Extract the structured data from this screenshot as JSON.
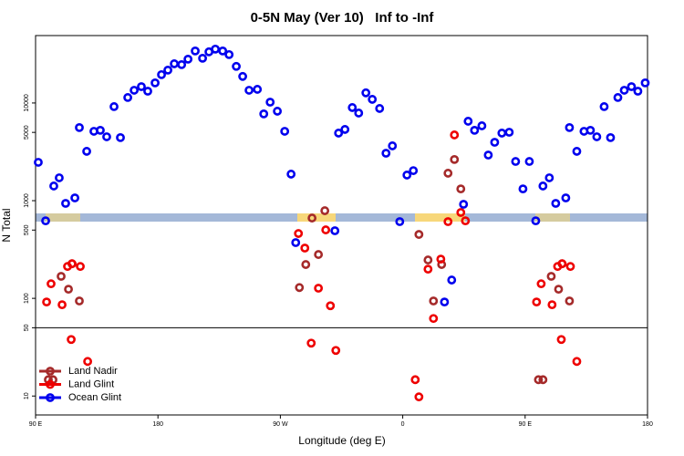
{
  "chart_data": {
    "type": "scatter",
    "title": "0-5N May (Ver 10)   Inf to -Inf",
    "xlabel": "Longitude (deg E)",
    "ylabel": "N Total",
    "xlim": [
      90,
      540
    ],
    "xticks": [
      {
        "value": 90,
        "label": "90 E"
      },
      {
        "value": 180,
        "label": "180"
      },
      {
        "value": 270,
        "label": "90 W"
      },
      {
        "value": 360,
        "label": "0"
      },
      {
        "value": 450,
        "label": "90 E"
      },
      {
        "value": 540,
        "label": "180"
      }
    ],
    "ylim": [
      6.4,
      49000
    ],
    "yticks": [
      10,
      50,
      100,
      500,
      1000,
      5000,
      10000
    ],
    "log_y": true,
    "hline": 50,
    "legend": "bottom-left",
    "series": [
      {
        "name": "Land Nadir",
        "color": "#a52a2a",
        "x": [
          99.4,
          102.8,
          108.8,
          114.2,
          116.8,
          122.2,
          284.0,
          288.7,
          293.3,
          298.0,
          302.7,
          371.9,
          378.6,
          382.6,
          388.6,
          393.3,
          398.0,
          402.7,
          459.8,
          463.1,
          469.2,
          474.6,
          477.2,
          482.6
        ],
        "values": [
          14.7,
          14.7,
          168,
          124,
          226,
          94,
          129,
          222,
          664,
          281,
          789,
          451,
          247,
          94,
          222,
          1910,
          2640,
          1320,
          14.7,
          14.7,
          168,
          124,
          226,
          94
        ]
      },
      {
        "name": "Land Glint",
        "color": "#ee0000",
        "x": [
          98.1,
          101.4,
          109.5,
          113.5,
          116.2,
          116.8,
          122.9,
          128.3,
          283.3,
          288.0,
          292.7,
          298.0,
          303.4,
          306.8,
          310.8,
          369.2,
          371.9,
          378.6,
          382.6,
          388.0,
          393.3,
          398.0,
          402.7,
          406.1,
          458.4,
          461.8,
          469.8,
          473.9,
          476.6,
          477.2,
          483.3,
          488.0
        ],
        "values": [
          91.8,
          141,
          86,
          212,
          37.9,
          226,
          212,
          22.6,
          461,
          327,
          34.8,
          127,
          502,
          84,
          29.3,
          14.7,
          9.8,
          199,
          62.2,
          252,
          610,
          4710,
          757,
          622,
          91.8,
          141,
          86,
          212,
          37.9,
          226,
          212,
          22.6
        ]
      },
      {
        "name": "Ocean Glint",
        "color": "#0000ee",
        "x": [
          92.0,
          97.4,
          103.4,
          107.4,
          112.1,
          118.9,
          122.2,
          127.6,
          132.9,
          137.6,
          142.3,
          147.7,
          152.4,
          157.8,
          162.5,
          167.8,
          172.5,
          177.9,
          182.6,
          187.3,
          192.0,
          197.4,
          202.1,
          207.4,
          212.8,
          217.5,
          222.2,
          227.6,
          232.3,
          237.6,
          242.3,
          247.0,
          253.1,
          257.8,
          262.5,
          267.8,
          273.2,
          277.9,
          281.3,
          310.1,
          312.8,
          317.5,
          322.9,
          327.6,
          332.9,
          337.6,
          343.0,
          347.7,
          352.4,
          357.8,
          363.1,
          367.8,
          390.7,
          396.0,
          404.7,
          408.1,
          412.8,
          418.2,
          422.9,
          427.6,
          432.9,
          438.3,
          443.0,
          448.4,
          453.1,
          457.8,
          463.1,
          467.8,
          472.5,
          479.9,
          482.6,
          488.0,
          493.3,
          498.0,
          502.7,
          508.1,
          512.8,
          518.2,
          522.9,
          528.2,
          532.9,
          538.3
        ],
        "values": [
          2470,
          622,
          1413,
          1714,
          938,
          1067,
          5600,
          3200,
          5130,
          5250,
          4510,
          9180,
          4420,
          11380,
          13500,
          14700,
          13200,
          16060,
          19500,
          21700,
          25200,
          24700,
          28100,
          34100,
          28700,
          33400,
          35600,
          34100,
          31300,
          23700,
          18700,
          13500,
          13800,
          7730,
          10200,
          8240,
          5130,
          1870,
          372,
          492,
          4920,
          5360,
          8980,
          7890,
          12700,
          10900,
          8790,
          3060,
          3640,
          610,
          1830,
          2030,
          91.8,
          154,
          918,
          6500,
          5250,
          5840,
          2930,
          3960,
          4920,
          5020,
          2520,
          1320,
          2520,
          622,
          1413,
          1714,
          938,
          1067,
          5600,
          3200,
          5130,
          5250,
          4510,
          9180,
          4420,
          11380,
          13500,
          14700,
          13200,
          16060
        ]
      }
    ]
  }
}
